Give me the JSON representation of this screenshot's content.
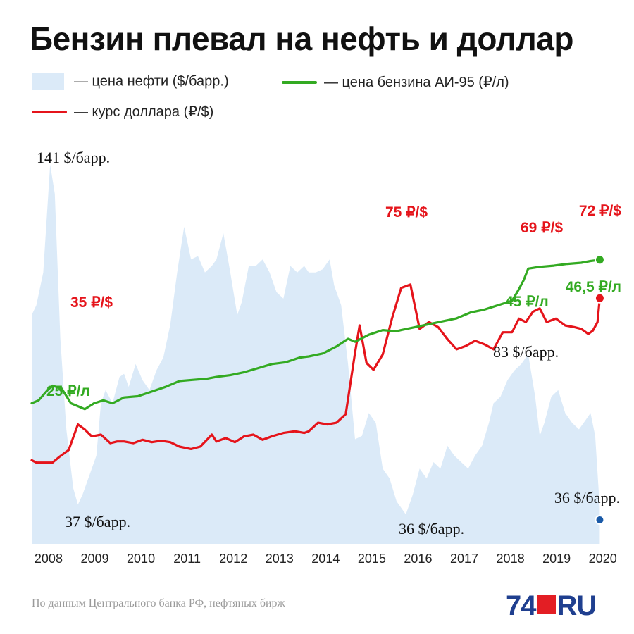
{
  "title": "Бензин плевал на нефть и доллар",
  "legend": [
    {
      "key": "oil",
      "label": "— цена нефти ($/барр.)"
    },
    {
      "key": "petrol",
      "label": "— цена бензина АИ-95 (₽/л)"
    },
    {
      "key": "usd",
      "label": "— курс доллара (₽/$)"
    }
  ],
  "colors": {
    "oil": "#dbeaf8",
    "petrol": "#33aa22",
    "usd": "#e5141b",
    "oil_point": "#1a5aa8",
    "text": "#111111"
  },
  "source": "По данным Центрального банка РФ, нефтяных бирж",
  "logo": {
    "prefix": "74",
    "suffix": "RU"
  },
  "chart_data": {
    "type": "line",
    "x_ticks": [
      "2008",
      "2009",
      "2010",
      "2011",
      "2012",
      "2013",
      "2014",
      "2015",
      "2016",
      "2017",
      "2018",
      "2019",
      "2020"
    ],
    "xlim": [
      2008.0,
      2020.4
    ],
    "grid": false,
    "legend_position": "top",
    "series": [
      {
        "key": "oil",
        "name": "цена нефти ($/барр.)",
        "type": "area",
        "ylim": [
          25,
          145
        ],
        "points": [
          [
            2008.0,
            95
          ],
          [
            2008.1,
            98
          ],
          [
            2008.25,
            108
          ],
          [
            2008.4,
            141
          ],
          [
            2008.5,
            132
          ],
          [
            2008.62,
            88
          ],
          [
            2008.75,
            60
          ],
          [
            2008.9,
            42
          ],
          [
            2009.0,
            37
          ],
          [
            2009.1,
            40
          ],
          [
            2009.25,
            46
          ],
          [
            2009.4,
            52
          ],
          [
            2009.5,
            68
          ],
          [
            2009.6,
            72
          ],
          [
            2009.75,
            68
          ],
          [
            2009.9,
            76
          ],
          [
            2010.0,
            77
          ],
          [
            2010.1,
            73
          ],
          [
            2010.25,
            80
          ],
          [
            2010.4,
            75
          ],
          [
            2010.55,
            72
          ],
          [
            2010.7,
            78
          ],
          [
            2010.85,
            82
          ],
          [
            2011.0,
            92
          ],
          [
            2011.15,
            108
          ],
          [
            2011.3,
            122
          ],
          [
            2011.45,
            112
          ],
          [
            2011.6,
            113
          ],
          [
            2011.75,
            108
          ],
          [
            2011.9,
            110
          ],
          [
            2012.0,
            112
          ],
          [
            2012.15,
            120
          ],
          [
            2012.3,
            108
          ],
          [
            2012.45,
            95
          ],
          [
            2012.55,
            99
          ],
          [
            2012.7,
            110
          ],
          [
            2012.85,
            110
          ],
          [
            2013.0,
            112
          ],
          [
            2013.15,
            108
          ],
          [
            2013.3,
            102
          ],
          [
            2013.45,
            100
          ],
          [
            2013.6,
            110
          ],
          [
            2013.75,
            108
          ],
          [
            2013.9,
            110
          ],
          [
            2014.0,
            108
          ],
          [
            2014.15,
            108
          ],
          [
            2014.3,
            109
          ],
          [
            2014.45,
            112
          ],
          [
            2014.55,
            104
          ],
          [
            2014.7,
            98
          ],
          [
            2014.85,
            80
          ],
          [
            2015.0,
            57
          ],
          [
            2015.15,
            58
          ],
          [
            2015.3,
            65
          ],
          [
            2015.45,
            62
          ],
          [
            2015.6,
            48
          ],
          [
            2015.75,
            45
          ],
          [
            2015.9,
            38
          ],
          [
            2016.0,
            36
          ],
          [
            2016.1,
            34
          ],
          [
            2016.25,
            40
          ],
          [
            2016.4,
            48
          ],
          [
            2016.55,
            45
          ],
          [
            2016.7,
            50
          ],
          [
            2016.85,
            48
          ],
          [
            2017.0,
            55
          ],
          [
            2017.15,
            52
          ],
          [
            2017.3,
            50
          ],
          [
            2017.45,
            48
          ],
          [
            2017.6,
            52
          ],
          [
            2017.75,
            55
          ],
          [
            2017.9,
            62
          ],
          [
            2018.0,
            68
          ],
          [
            2018.15,
            70
          ],
          [
            2018.3,
            75
          ],
          [
            2018.45,
            78
          ],
          [
            2018.6,
            80
          ],
          [
            2018.75,
            83
          ],
          [
            2018.9,
            70
          ],
          [
            2019.0,
            58
          ],
          [
            2019.1,
            62
          ],
          [
            2019.25,
            70
          ],
          [
            2019.4,
            72
          ],
          [
            2019.55,
            65
          ],
          [
            2019.7,
            62
          ],
          [
            2019.85,
            60
          ],
          [
            2020.0,
            63
          ],
          [
            2020.1,
            65
          ],
          [
            2020.2,
            58
          ],
          [
            2020.3,
            36
          ]
        ],
        "annotations": [
          {
            "x": 2008.4,
            "y": 141,
            "label": "141 $/барр."
          },
          {
            "x": 2009.0,
            "y": 37,
            "label": "37 $/барр."
          },
          {
            "x": 2016.05,
            "y": 36,
            "label": "36 $/барр."
          },
          {
            "x": 2018.75,
            "y": 83,
            "label": "83 $/барр."
          },
          {
            "x": 2020.3,
            "y": 36,
            "label": "36 $/барр."
          }
        ]
      },
      {
        "key": "usd",
        "name": "курс доллара (₽/$)",
        "ylim": [
          0,
          115
        ],
        "points": [
          [
            2008.0,
            24.5
          ],
          [
            2008.1,
            23.8
          ],
          [
            2008.3,
            23.8
          ],
          [
            2008.45,
            23.8
          ],
          [
            2008.6,
            25.5
          ],
          [
            2008.8,
            27.5
          ],
          [
            2009.0,
            35
          ],
          [
            2009.15,
            33.5
          ],
          [
            2009.3,
            31.5
          ],
          [
            2009.5,
            32
          ],
          [
            2009.7,
            29.5
          ],
          [
            2009.85,
            30
          ],
          [
            2010.0,
            30
          ],
          [
            2010.2,
            29.5
          ],
          [
            2010.4,
            30.5
          ],
          [
            2010.6,
            29.8
          ],
          [
            2010.8,
            30.2
          ],
          [
            2011.0,
            29.8
          ],
          [
            2011.2,
            28.5
          ],
          [
            2011.45,
            27.8
          ],
          [
            2011.65,
            28.5
          ],
          [
            2011.9,
            32
          ],
          [
            2012.0,
            30
          ],
          [
            2012.2,
            31
          ],
          [
            2012.4,
            29.8
          ],
          [
            2012.6,
            31.5
          ],
          [
            2012.8,
            32
          ],
          [
            2013.0,
            30.5
          ],
          [
            2013.2,
            31.5
          ],
          [
            2013.45,
            32.5
          ],
          [
            2013.7,
            33
          ],
          [
            2013.9,
            32.5
          ],
          [
            2014.0,
            33
          ],
          [
            2014.2,
            35.5
          ],
          [
            2014.4,
            35
          ],
          [
            2014.6,
            35.5
          ],
          [
            2014.8,
            38
          ],
          [
            2015.0,
            56
          ],
          [
            2015.1,
            64
          ],
          [
            2015.25,
            53
          ],
          [
            2015.4,
            51
          ],
          [
            2015.6,
            55.5
          ],
          [
            2015.8,
            66
          ],
          [
            2016.0,
            75
          ],
          [
            2016.2,
            76
          ],
          [
            2016.4,
            63
          ],
          [
            2016.6,
            65
          ],
          [
            2016.8,
            63.5
          ],
          [
            2017.0,
            60
          ],
          [
            2017.2,
            57
          ],
          [
            2017.4,
            58
          ],
          [
            2017.6,
            59.5
          ],
          [
            2017.8,
            58.5
          ],
          [
            2018.0,
            57
          ],
          [
            2018.2,
            62
          ],
          [
            2018.4,
            62
          ],
          [
            2018.55,
            66
          ],
          [
            2018.7,
            65
          ],
          [
            2018.85,
            68
          ],
          [
            2019.0,
            69
          ],
          [
            2019.15,
            65
          ],
          [
            2019.35,
            66
          ],
          [
            2019.55,
            64
          ],
          [
            2019.75,
            63.5
          ],
          [
            2019.9,
            63
          ],
          [
            2020.05,
            61.5
          ],
          [
            2020.15,
            62.5
          ],
          [
            2020.25,
            65
          ],
          [
            2020.3,
            72
          ]
        ],
        "annotations": [
          {
            "x": 2008.85,
            "y": 35,
            "label": "35 ₽/$"
          },
          {
            "x": 2016.05,
            "y": 75,
            "label": "75 ₽/$"
          },
          {
            "x": 2019.0,
            "y": 69,
            "label": "69 ₽/$"
          },
          {
            "x": 2020.3,
            "y": 72,
            "label": "72 ₽/$"
          }
        ]
      },
      {
        "key": "petrol",
        "name": "цена бензина АИ-95 (₽/л)",
        "ylim": [
          -2,
          65
        ],
        "points": [
          [
            2008.0,
            22
          ],
          [
            2008.15,
            22.5
          ],
          [
            2008.35,
            24.3
          ],
          [
            2008.45,
            25
          ],
          [
            2008.65,
            24.5
          ],
          [
            2008.85,
            22
          ],
          [
            2009.0,
            21.5
          ],
          [
            2009.15,
            21
          ],
          [
            2009.35,
            22
          ],
          [
            2009.55,
            22.5
          ],
          [
            2009.75,
            22
          ],
          [
            2010.0,
            23
          ],
          [
            2010.3,
            23.2
          ],
          [
            2010.6,
            24
          ],
          [
            2010.9,
            24.8
          ],
          [
            2011.2,
            25.8
          ],
          [
            2011.5,
            26
          ],
          [
            2011.8,
            26.2
          ],
          [
            2012.0,
            26.5
          ],
          [
            2012.3,
            26.8
          ],
          [
            2012.6,
            27.3
          ],
          [
            2012.9,
            28
          ],
          [
            2013.2,
            28.7
          ],
          [
            2013.5,
            29
          ],
          [
            2013.8,
            29.8
          ],
          [
            2014.0,
            30
          ],
          [
            2014.3,
            30.5
          ],
          [
            2014.6,
            31.7
          ],
          [
            2014.85,
            33
          ],
          [
            2015.0,
            32.5
          ],
          [
            2015.3,
            33.7
          ],
          [
            2015.6,
            34.5
          ],
          [
            2015.9,
            34.3
          ],
          [
            2016.0,
            34.5
          ],
          [
            2016.3,
            35
          ],
          [
            2016.6,
            35.5
          ],
          [
            2016.9,
            36
          ],
          [
            2017.2,
            36.5
          ],
          [
            2017.5,
            37.5
          ],
          [
            2017.8,
            38
          ],
          [
            2018.0,
            38.5
          ],
          [
            2018.2,
            39
          ],
          [
            2018.4,
            39.5
          ],
          [
            2018.55,
            41.5
          ],
          [
            2018.65,
            43
          ],
          [
            2018.75,
            45
          ],
          [
            2019.0,
            45.3
          ],
          [
            2019.3,
            45.5
          ],
          [
            2019.6,
            45.8
          ],
          [
            2019.9,
            46
          ],
          [
            2020.1,
            46.3
          ],
          [
            2020.3,
            46.5
          ]
        ],
        "annotations": [
          {
            "x": 2008.45,
            "y": 25,
            "label": "25 ₽/л"
          },
          {
            "x": 2018.75,
            "y": 45,
            "label": "45 ₽/л"
          },
          {
            "x": 2020.3,
            "y": 46.5,
            "label": "46,5 ₽/л"
          }
        ]
      }
    ]
  }
}
